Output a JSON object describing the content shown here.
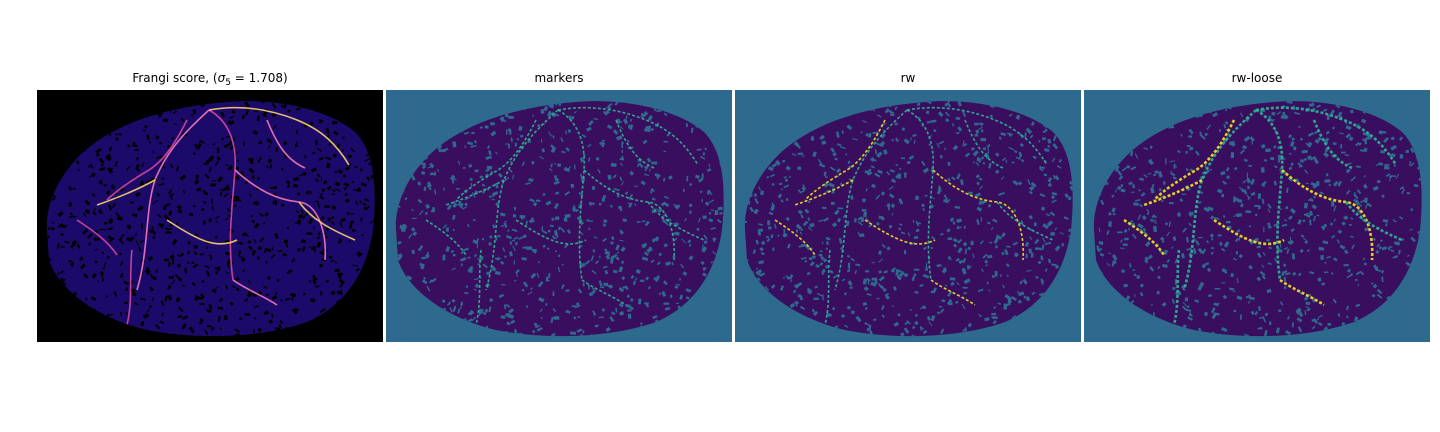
{
  "figure": {
    "panels": [
      {
        "title_prefix": "Frangi score, (",
        "title_sigma": "σ",
        "title_subscript": "5",
        "title_suffix": " = 1.708)",
        "colormap": "magma-like",
        "background": "#000000",
        "blob_fill": "#1c0a6b",
        "texture_color": "#000000",
        "vessel_colors": [
          "#f77ab7",
          "#fcd36b",
          "#d4479a"
        ]
      },
      {
        "title": "markers",
        "colormap": "viridis-like",
        "background": "#2e6a8e",
        "blob_fill": "#3a0e5e",
        "texture_color": "#2e6a8e",
        "vessel_colors": [
          "#2fb596"
        ]
      },
      {
        "title": "rw",
        "colormap": "viridis-like",
        "background": "#2e6a8e",
        "blob_fill": "#3a0e5e",
        "texture_color": "#2e6a8e",
        "vessel_colors": [
          "#2fb596",
          "#f2e51e"
        ]
      },
      {
        "title": "rw-loose",
        "colormap": "viridis-like",
        "background": "#2e6a8e",
        "blob_fill": "#3a0e5e",
        "texture_color": "#2e6a8e",
        "vessel_colors": [
          "#2fb596",
          "#f2e51e"
        ]
      }
    ]
  }
}
